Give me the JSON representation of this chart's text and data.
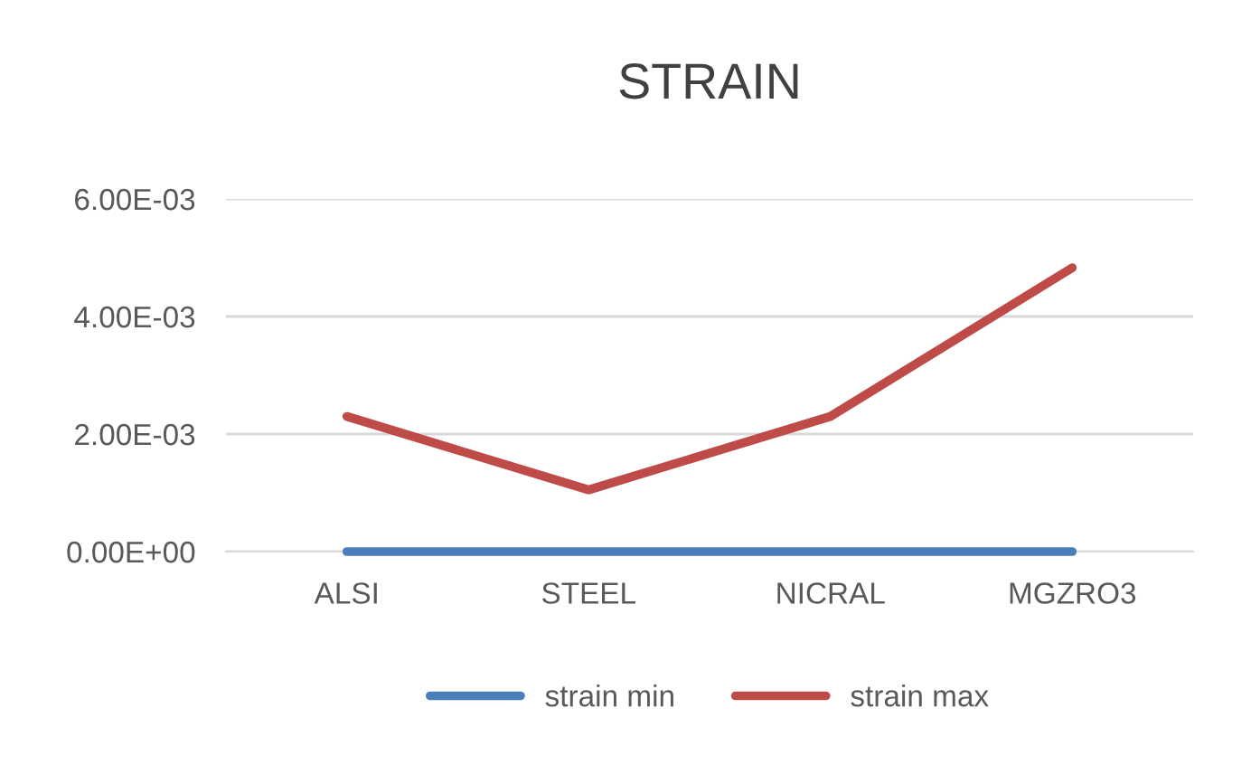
{
  "chart_data": {
    "type": "line",
    "title": "STRAIN",
    "categories": [
      "ALSI",
      "STEEL",
      "NICRAL",
      "MGZRO3"
    ],
    "series": [
      {
        "name": "strain min",
        "color": "#4a7ebb",
        "values": [
          0,
          0,
          0,
          0
        ]
      },
      {
        "name": "strain max",
        "color": "#be4b48",
        "values": [
          0.0023,
          0.00105,
          0.0023,
          0.00483
        ]
      }
    ],
    "ylim": [
      0,
      0.006
    ],
    "yticks": [
      {
        "value": 0,
        "label": "0.00E+00"
      },
      {
        "value": 0.002,
        "label": "2.00E-03"
      },
      {
        "value": 0.004,
        "label": "4.00E-03"
      },
      {
        "value": 0.006,
        "label": "6.00E-03"
      }
    ],
    "grid": "y",
    "legend": "bottom",
    "marker": "none",
    "line_style": "solid"
  }
}
